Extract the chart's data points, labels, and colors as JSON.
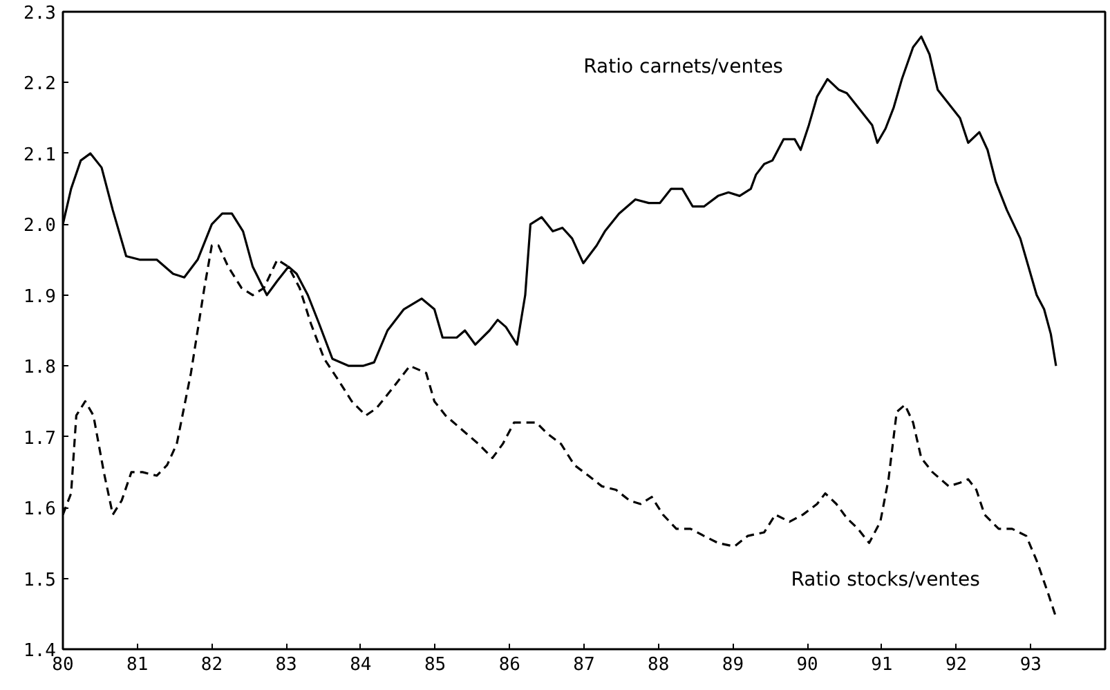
{
  "chart_data": {
    "type": "line",
    "xlim": [
      80,
      94
    ],
    "ylim": [
      1.4,
      2.3
    ],
    "xticks": [
      80,
      81,
      82,
      83,
      84,
      85,
      86,
      87,
      88,
      89,
      90,
      91,
      92,
      93
    ],
    "yticks": [
      {
        "value": 1.4,
        "label": "1.4"
      },
      {
        "value": 1.5,
        "label": "1.5"
      },
      {
        "value": 1.6,
        "label": "1.6"
      },
      {
        "value": 1.7,
        "label": "1.7"
      },
      {
        "value": 1.8,
        "label": "1.8"
      },
      {
        "value": 1.9,
        "label": "1.9"
      },
      {
        "value": 2.0,
        "label": "2.0"
      },
      {
        "value": 2.1,
        "label": "2.1"
      },
      {
        "value": 2.2,
        "label": "2.2"
      },
      {
        "value": 2.3,
        "label": "2.3"
      }
    ],
    "grid": false,
    "series": [
      {
        "name": "Ratio carnets/ventes",
        "color": "#000000",
        "line_style": "solid",
        "x": [
          80.0,
          80.11,
          80.24,
          80.37,
          80.52,
          80.67,
          80.85,
          81.03,
          81.26,
          81.48,
          81.63,
          81.81,
          82.0,
          82.14,
          82.27,
          82.42,
          82.55,
          82.74,
          82.88,
          83.03,
          83.14,
          83.29,
          83.44,
          83.62,
          83.84,
          84.03,
          84.18,
          84.36,
          84.58,
          84.82,
          84.99,
          85.1,
          85.29,
          85.4,
          85.54,
          85.73,
          85.84,
          85.95,
          86.1,
          86.21,
          86.28,
          86.43,
          86.58,
          86.71,
          86.84,
          86.99,
          87.17,
          87.28,
          87.47,
          87.69,
          87.87,
          88.02,
          88.17,
          88.32,
          88.46,
          88.61,
          88.8,
          88.94,
          89.09,
          89.24,
          89.31,
          89.42,
          89.53,
          89.68,
          89.83,
          89.91,
          90.02,
          90.13,
          90.27,
          90.42,
          90.53,
          90.72,
          90.87,
          90.94,
          91.05,
          91.16,
          91.27,
          91.42,
          91.53,
          91.64,
          91.75,
          91.9,
          92.05,
          92.16,
          92.31,
          92.42,
          92.53,
          92.68,
          92.86,
          92.97,
          93.08,
          93.18,
          93.27,
          93.34
        ],
        "values": [
          2.0,
          2.05,
          2.09,
          2.1,
          2.08,
          2.02,
          1.955,
          1.95,
          1.95,
          1.93,
          1.925,
          1.95,
          2.0,
          2.015,
          2.015,
          1.99,
          1.94,
          1.9,
          1.92,
          1.94,
          1.93,
          1.9,
          1.86,
          1.81,
          1.8,
          1.8,
          1.805,
          1.85,
          1.88,
          1.895,
          1.88,
          1.84,
          1.84,
          1.85,
          1.83,
          1.85,
          1.865,
          1.855,
          1.83,
          1.9,
          2.0,
          2.01,
          1.99,
          1.995,
          1.98,
          1.945,
          1.97,
          1.99,
          2.015,
          2.035,
          2.03,
          2.03,
          2.05,
          2.05,
          2.025,
          2.025,
          2.04,
          2.045,
          2.04,
          2.05,
          2.07,
          2.085,
          2.09,
          2.12,
          2.12,
          2.105,
          2.14,
          2.18,
          2.205,
          2.19,
          2.185,
          2.16,
          2.14,
          2.115,
          2.135,
          2.165,
          2.205,
          2.25,
          2.265,
          2.24,
          2.19,
          2.17,
          2.15,
          2.115,
          2.13,
          2.105,
          2.06,
          2.02,
          1.98,
          1.94,
          1.9,
          1.88,
          1.845,
          1.8
        ]
      },
      {
        "name": "Ratio stocks/ventes",
        "color": "#000000",
        "line_style": "dashed",
        "x": [
          80.0,
          80.11,
          80.18,
          80.3,
          80.41,
          80.55,
          80.67,
          80.79,
          80.92,
          81.07,
          81.26,
          81.4,
          81.53,
          81.72,
          81.9,
          82.0,
          82.09,
          82.22,
          82.4,
          82.55,
          82.7,
          82.88,
          83.03,
          83.18,
          83.33,
          83.51,
          83.7,
          83.88,
          84.07,
          84.21,
          84.44,
          84.66,
          84.88,
          84.99,
          85.14,
          85.36,
          85.58,
          85.77,
          85.91,
          86.06,
          86.17,
          86.36,
          86.5,
          86.69,
          86.87,
          87.06,
          87.24,
          87.43,
          87.61,
          87.76,
          87.91,
          88.06,
          88.24,
          88.43,
          88.61,
          88.8,
          89.02,
          89.2,
          89.42,
          89.57,
          89.76,
          89.94,
          90.13,
          90.24,
          90.39,
          90.53,
          90.68,
          90.83,
          90.98,
          91.09,
          91.2,
          91.31,
          91.42,
          91.53,
          91.68,
          91.9,
          92.05,
          92.16,
          92.27,
          92.38,
          92.57,
          92.75,
          92.94,
          93.08,
          93.23,
          93.34
        ],
        "values": [
          1.59,
          1.62,
          1.73,
          1.75,
          1.73,
          1.65,
          1.59,
          1.61,
          1.65,
          1.65,
          1.645,
          1.66,
          1.69,
          1.79,
          1.91,
          1.97,
          1.97,
          1.94,
          1.91,
          1.9,
          1.91,
          1.95,
          1.94,
          1.91,
          1.86,
          1.81,
          1.78,
          1.75,
          1.73,
          1.74,
          1.77,
          1.8,
          1.79,
          1.75,
          1.73,
          1.71,
          1.69,
          1.67,
          1.69,
          1.72,
          1.72,
          1.72,
          1.705,
          1.69,
          1.66,
          1.645,
          1.63,
          1.625,
          1.61,
          1.605,
          1.615,
          1.59,
          1.57,
          1.57,
          1.56,
          1.55,
          1.545,
          1.56,
          1.565,
          1.59,
          1.58,
          1.59,
          1.605,
          1.62,
          1.605,
          1.585,
          1.57,
          1.55,
          1.58,
          1.64,
          1.735,
          1.745,
          1.72,
          1.67,
          1.65,
          1.63,
          1.635,
          1.64,
          1.625,
          1.59,
          1.57,
          1.57,
          1.56,
          1.525,
          1.48,
          1.445
        ]
      }
    ]
  }
}
